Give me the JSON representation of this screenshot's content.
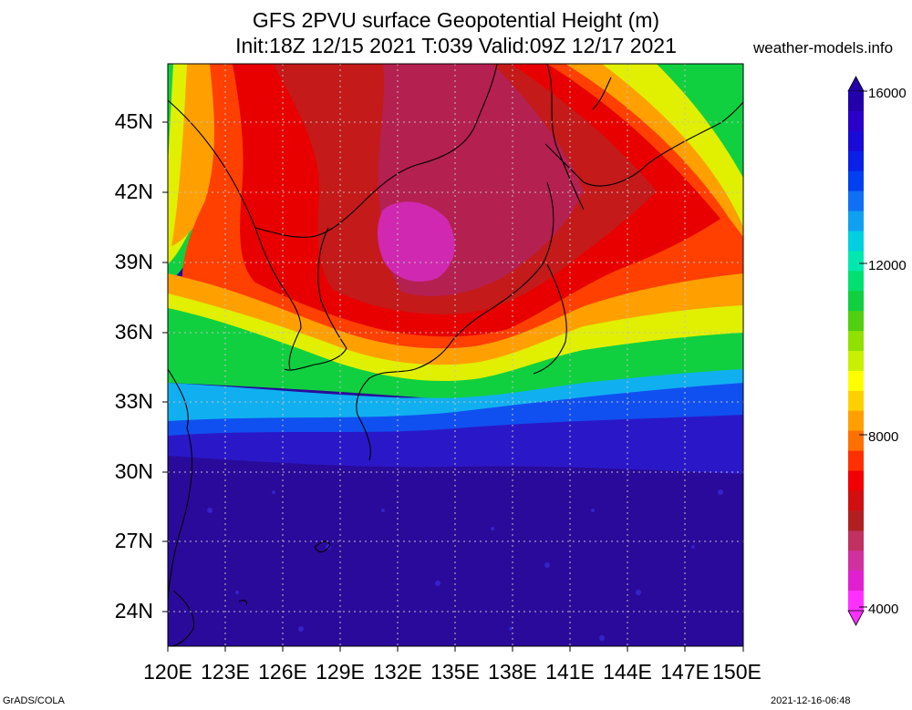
{
  "title_line1": "GFS 2PVU surface Geopotential Height (m)",
  "title_line2": "Init:18Z 12/15 2021 T:039 Valid:09Z 12/17 2021",
  "site": "weather-models.info",
  "lat_ticks": [
    "45N",
    "42N",
    "39N",
    "36N",
    "33N",
    "30N",
    "27N",
    "24N"
  ],
  "lon_ticks": [
    "120E",
    "123E",
    "126E",
    "129E",
    "132E",
    "135E",
    "138E",
    "141E",
    "144E",
    "147E",
    "150E"
  ],
  "colorbar": {
    "labels": [
      "16000",
      "12000",
      "8000",
      "4000"
    ],
    "colors": [
      "#2200aa",
      "#2a00c8",
      "#1a0ad6",
      "#0a20e6",
      "#0040f0",
      "#1070f5",
      "#10a0f0",
      "#00d0e0",
      "#00e8b0",
      "#00e070",
      "#10d040",
      "#50d010",
      "#90e000",
      "#c8f000",
      "#ffff00",
      "#ffd000",
      "#ffa000",
      "#ff7000",
      "#ff3000",
      "#f00000",
      "#d01010",
      "#b02020",
      "#c03060",
      "#d030a0",
      "#e020d0",
      "#ff30ff"
    ]
  },
  "map": {
    "lon_range": [
      120,
      150
    ],
    "lat_range": [
      22.5,
      47.5
    ],
    "color_bands": [
      "#2a0a9a",
      "#2a10c0",
      "#1030e0",
      "#10a0f0",
      "#00e070",
      "#c0f000",
      "#ffd000",
      "#ff5000",
      "#e80000",
      "#c81818",
      "#b02050",
      "#d028b0"
    ]
  },
  "footer_left": "GrADS/COLA",
  "footer_right": "2021-12-16-06:48"
}
